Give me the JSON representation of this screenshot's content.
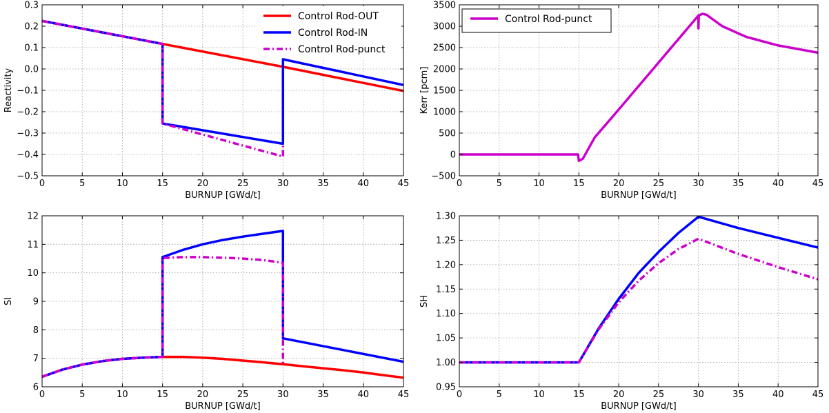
{
  "chart_data": [
    {
      "type": "line",
      "xlabel": "BURNUP [GWd/t]",
      "ylabel": "Reactivity",
      "xlim": [
        0,
        45
      ],
      "ylim": [
        -0.5,
        0.3
      ],
      "xticks": [
        0,
        5,
        10,
        15,
        20,
        25,
        30,
        35,
        40,
        45
      ],
      "yticks": [
        -0.5,
        -0.4,
        -0.3,
        -0.2,
        -0.1,
        0.0,
        0.1,
        0.2,
        0.3
      ],
      "ytick_labels": [
        "−0.5",
        "−0.4",
        "−0.3",
        "−0.2",
        "−0.1",
        "0.0",
        "0.1",
        "0.2",
        "0.3"
      ],
      "grid": true,
      "legend": "top-right",
      "series": [
        {
          "name": "Control Rod-OUT",
          "color": "#ff0000",
          "style": "solid",
          "x": [
            0,
            15,
            30,
            45
          ],
          "y": [
            0.225,
            0.117,
            0.01,
            -0.103
          ]
        },
        {
          "name": "Control Rod-IN",
          "color": "#0000ff",
          "style": "solid",
          "x": [
            0,
            15,
            15,
            30,
            30,
            45
          ],
          "y": [
            0.225,
            0.117,
            -0.255,
            -0.35,
            0.045,
            -0.075
          ]
        },
        {
          "name": "Control Rod-punct",
          "color": "#cc00cc",
          "style": "dashdot",
          "x": [
            0,
            15,
            15,
            30,
            30
          ],
          "y": [
            0.225,
            0.117,
            -0.255,
            -0.41,
            -0.36
          ]
        }
      ]
    },
    {
      "type": "line",
      "xlabel": "BURNUP [GWd/t]",
      "ylabel": "Kerr [pcm]",
      "xlim": [
        0,
        45
      ],
      "ylim": [
        -500,
        3500
      ],
      "xticks": [
        0,
        5,
        10,
        15,
        20,
        25,
        30,
        35,
        40,
        45
      ],
      "yticks": [
        -500,
        0,
        500,
        1000,
        1500,
        2000,
        2500,
        3000,
        3500
      ],
      "ytick_labels": [
        "−500",
        "0",
        "500",
        "1000",
        "1500",
        "2000",
        "2500",
        "3000",
        "3500"
      ],
      "grid": true,
      "legend": "top-left",
      "series": [
        {
          "name": "Control Rod-punct",
          "color": "#cc00cc",
          "style": "solid",
          "x": [
            0,
            14.9,
            15,
            15.5,
            17,
            20,
            25,
            30,
            30,
            30.05,
            30.5,
            31,
            33,
            36,
            40,
            45
          ],
          "y": [
            0,
            0,
            -150,
            -100,
            400,
            1050,
            2150,
            3250,
            2950,
            3250,
            3290,
            3270,
            3000,
            2750,
            2550,
            2380
          ]
        }
      ]
    },
    {
      "type": "line",
      "xlabel": "BURNUP [GWd/t]",
      "ylabel": "SI",
      "xlim": [
        0,
        45
      ],
      "ylim": [
        6,
        12
      ],
      "xticks": [
        0,
        5,
        10,
        15,
        20,
        25,
        30,
        35,
        40,
        45
      ],
      "yticks": [
        6,
        7,
        8,
        9,
        10,
        11,
        12
      ],
      "ytick_labels": [
        "6",
        "7",
        "8",
        "9",
        "10",
        "11",
        "12"
      ],
      "grid": true,
      "series": [
        {
          "color": "#ff0000",
          "style": "solid",
          "x": [
            0,
            2.5,
            5,
            7.5,
            10,
            12.5,
            15,
            17.5,
            20,
            22.5,
            25,
            27.5,
            30,
            32.5,
            35,
            37.5,
            40,
            42.5,
            45
          ],
          "y": [
            6.35,
            6.6,
            6.78,
            6.9,
            6.98,
            7.02,
            7.05,
            7.05,
            7.02,
            6.98,
            6.92,
            6.86,
            6.79,
            6.72,
            6.65,
            6.58,
            6.5,
            6.41,
            6.32
          ]
        },
        {
          "color": "#0000ff",
          "style": "solid",
          "x": [
            0,
            2.5,
            5,
            7.5,
            10,
            12.5,
            15,
            15,
            17.5,
            20,
            22.5,
            25,
            27.5,
            30,
            30,
            45
          ],
          "y": [
            6.35,
            6.6,
            6.78,
            6.9,
            6.98,
            7.02,
            7.05,
            10.55,
            10.8,
            11.0,
            11.15,
            11.27,
            11.37,
            11.47,
            7.7,
            6.88
          ]
        },
        {
          "color": "#cc00cc",
          "style": "dashdot",
          "x": [
            0,
            2.5,
            5,
            7.5,
            10,
            12.5,
            15,
            15,
            17.5,
            20,
            22.5,
            25,
            27.5,
            30,
            30,
            30
          ],
          "y": [
            6.35,
            6.6,
            6.78,
            6.9,
            6.98,
            7.02,
            7.05,
            10.52,
            10.55,
            10.55,
            10.53,
            10.5,
            10.45,
            10.35,
            7.7,
            6.8
          ]
        }
      ]
    },
    {
      "type": "line",
      "xlabel": "BURNUP [GWd/t]",
      "ylabel": "SH",
      "xlim": [
        0,
        45
      ],
      "ylim": [
        0.95,
        1.3
      ],
      "xticks": [
        0,
        5,
        10,
        15,
        20,
        25,
        30,
        35,
        40,
        45
      ],
      "yticks": [
        0.95,
        1.0,
        1.05,
        1.1,
        1.15,
        1.2,
        1.25,
        1.3
      ],
      "ytick_labels": [
        "0.95",
        "1.00",
        "1.05",
        "1.10",
        "1.15",
        "1.20",
        "1.25",
        "1.30"
      ],
      "grid": true,
      "series": [
        {
          "color": "#0000ff",
          "style": "solid",
          "x": [
            0,
            15,
            17.5,
            20,
            22.5,
            25,
            27.5,
            30,
            35,
            40,
            45
          ],
          "y": [
            1.0,
            1.0,
            1.07,
            1.13,
            1.183,
            1.226,
            1.265,
            1.298,
            1.275,
            1.255,
            1.235
          ]
        },
        {
          "color": "#cc00cc",
          "style": "dashdot",
          "x": [
            0,
            15,
            17.5,
            20,
            22.5,
            25,
            27.5,
            30,
            35,
            40,
            45
          ],
          "y": [
            1.0,
            1.0,
            1.068,
            1.123,
            1.167,
            1.203,
            1.232,
            1.253,
            1.222,
            1.195,
            1.17
          ]
        }
      ]
    }
  ]
}
